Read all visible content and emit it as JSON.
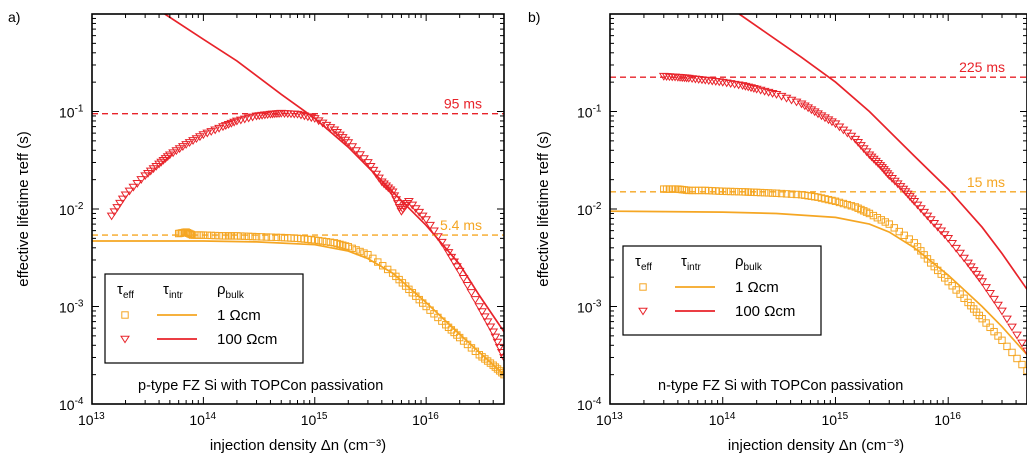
{
  "colors": {
    "orange": "#F5A623",
    "red": "#E8232A",
    "axis": "#000000"
  },
  "chart_data": [
    {
      "type": "scatter",
      "panel_label": "a)",
      "xscale": "log",
      "yscale": "log",
      "xlim": [
        10000000000000.0,
        5e+16
      ],
      "ylim": [
        0.0001,
        1
      ],
      "xlabel": "injection density Δn (cm⁻³)",
      "ylabel": "effective lifetime τeff (s)",
      "x_ticks": [
        {
          "v": 10000000000000.0,
          "b": "10",
          "e": "13"
        },
        {
          "v": 100000000000000.0,
          "b": "10",
          "e": "14"
        },
        {
          "v": 1000000000000000.0,
          "b": "10",
          "e": "15"
        },
        {
          "v": 1e+16,
          "b": "10",
          "e": "16"
        }
      ],
      "y_ticks": [
        {
          "v": 0.0001,
          "b": "10",
          "e": "-4"
        },
        {
          "v": 0.001,
          "b": "10",
          "e": "-3"
        },
        {
          "v": 0.01,
          "b": "10",
          "e": "-2"
        },
        {
          "v": 0.1,
          "b": "10",
          "e": "-1"
        }
      ],
      "annotation": "p-type FZ Si with TOPCon passivation",
      "legend": {
        "headers": [
          {
            "b": "τ",
            "s": "eff"
          },
          {
            "b": "τ",
            "s": "intr"
          },
          {
            "b": "ρ",
            "s": "bulk"
          }
        ],
        "entries": [
          {
            "label": "1 Ωcm",
            "color": "orange",
            "marker": "square"
          },
          {
            "label": "100 Ωcm",
            "color": "red",
            "marker": "triangle-down"
          }
        ]
      },
      "ref_lines": [
        {
          "y": 0.095,
          "label": "95 ms",
          "color": "red"
        },
        {
          "y": 0.0054,
          "label": "5.4 ms",
          "color": "orange"
        }
      ],
      "series": [
        {
          "marker": "square",
          "color": "orange",
          "points": [
            [
              60000000000000.0,
              0.0056
            ],
            [
              70000000000000.0,
              0.0058
            ],
            [
              80000000000000.0,
              0.0054
            ],
            [
              100000000000000.0,
              0.0054
            ],
            [
              150000000000000.0,
              0.0053
            ],
            [
              200000000000000.0,
              0.0053
            ],
            [
              300000000000000.0,
              0.0052
            ],
            [
              500000000000000.0,
              0.0051
            ],
            [
              700000000000000.0,
              0.005
            ],
            [
              1000000000000000.0,
              0.0048
            ],
            [
              1500000000000000.0,
              0.0045
            ],
            [
              2000000000000000.0,
              0.0041
            ],
            [
              3000000000000000.0,
              0.0034
            ],
            [
              5000000000000000.0,
              0.0022
            ],
            [
              7000000000000000.0,
              0.0015
            ],
            [
              1e+16,
              0.001
            ],
            [
              1.5e+16,
              0.00065
            ],
            [
              2e+16,
              0.00048
            ],
            [
              3e+16,
              0.00032
            ],
            [
              4e+16,
              0.00025
            ],
            [
              5e+16,
              0.0002
            ]
          ]
        },
        {
          "marker": "triangle-down",
          "color": "red",
          "points": [
            [
              15000000000000.0,
              0.0085
            ],
            [
              20000000000000.0,
              0.014
            ],
            [
              30000000000000.0,
              0.022
            ],
            [
              40000000000000.0,
              0.029
            ],
            [
              50000000000000.0,
              0.036
            ],
            [
              70000000000000.0,
              0.046
            ],
            [
              100000000000000.0,
              0.058
            ],
            [
              150000000000000.0,
              0.07
            ],
            [
              200000000000000.0,
              0.08
            ],
            [
              300000000000000.0,
              0.09
            ],
            [
              400000000000000.0,
              0.094
            ],
            [
              500000000000000.0,
              0.096
            ],
            [
              700000000000000.0,
              0.094
            ],
            [
              1000000000000000.0,
              0.085
            ],
            [
              1500000000000000.0,
              0.065
            ],
            [
              2000000000000000.0,
              0.048
            ],
            [
              3000000000000000.0,
              0.03
            ],
            [
              4000000000000000.0,
              0.019
            ],
            [
              5000000000000000.0,
              0.015
            ],
            [
              6000000000000000.0,
              0.0095
            ],
            [
              7000000000000000.0,
              0.012
            ],
            [
              1e+16,
              0.0078
            ],
            [
              1.5e+16,
              0.004
            ],
            [
              2e+16,
              0.0023
            ],
            [
              3e+16,
              0.001
            ],
            [
              4e+16,
              0.00055
            ],
            [
              5e+16,
              0.0003
            ]
          ]
        }
      ],
      "lines": [
        {
          "color": "orange",
          "points": [
            [
              10000000000000.0,
              0.0047
            ],
            [
              100000000000000.0,
              0.0047
            ],
            [
              300000000000000.0,
              0.0046
            ],
            [
              1000000000000000.0,
              0.0043
            ],
            [
              2000000000000000.0,
              0.0037
            ],
            [
              3000000000000000.0,
              0.0031
            ],
            [
              5000000000000000.0,
              0.0022
            ],
            [
              1e+16,
              0.0011
            ],
            [
              2e+16,
              0.00052
            ],
            [
              3e+16,
              0.00034
            ],
            [
              5e+16,
              0.0002
            ]
          ]
        },
        {
          "color": "red",
          "points": [
            [
              45000000000000.0,
              1.0
            ],
            [
              100000000000000.0,
              0.55
            ],
            [
              200000000000000.0,
              0.33
            ],
            [
              500000000000000.0,
              0.15
            ],
            [
              1000000000000000.0,
              0.085
            ],
            [
              2000000000000000.0,
              0.043
            ],
            [
              5000000000000000.0,
              0.015
            ],
            [
              1e+16,
              0.0068
            ],
            [
              2e+16,
              0.0027
            ],
            [
              3e+16,
              0.0013
            ],
            [
              5e+16,
              0.00055
            ]
          ]
        }
      ]
    },
    {
      "type": "scatter",
      "panel_label": "b)",
      "xscale": "log",
      "yscale": "log",
      "xlim": [
        10000000000000.0,
        5e+16
      ],
      "ylim": [
        0.0001,
        1
      ],
      "xlabel": "injection density Δn (cm⁻³)",
      "ylabel": "effective lifetime τeff (s)",
      "x_ticks": [
        {
          "v": 10000000000000.0,
          "b": "10",
          "e": "13"
        },
        {
          "v": 100000000000000.0,
          "b": "10",
          "e": "14"
        },
        {
          "v": 1000000000000000.0,
          "b": "10",
          "e": "15"
        },
        {
          "v": 1e+16,
          "b": "10",
          "e": "16"
        }
      ],
      "y_ticks": [
        {
          "v": 0.0001,
          "b": "10",
          "e": "-4"
        },
        {
          "v": 0.001,
          "b": "10",
          "e": "-3"
        },
        {
          "v": 0.01,
          "b": "10",
          "e": "-2"
        },
        {
          "v": 0.1,
          "b": "10",
          "e": "-1"
        }
      ],
      "annotation": "n-type FZ Si with TOPCon passivation",
      "legend": {
        "headers": [
          {
            "b": "τ",
            "s": "eff"
          },
          {
            "b": "τ",
            "s": "intr"
          },
          {
            "b": "ρ",
            "s": "bulk"
          }
        ],
        "entries": [
          {
            "label": "1 Ωcm",
            "color": "orange",
            "marker": "square"
          },
          {
            "label": "100 Ωcm",
            "color": "red",
            "marker": "triangle-down"
          }
        ]
      },
      "ref_lines": [
        {
          "y": 0.225,
          "label": "225 ms",
          "color": "red"
        },
        {
          "y": 0.015,
          "label": "15 ms",
          "color": "orange"
        }
      ],
      "series": [
        {
          "marker": "square",
          "color": "orange",
          "points": [
            [
              30000000000000.0,
              0.016
            ],
            [
              40000000000000.0,
              0.016
            ],
            [
              50000000000000.0,
              0.0155
            ],
            [
              70000000000000.0,
              0.0155
            ],
            [
              100000000000000.0,
              0.0152
            ],
            [
              150000000000000.0,
              0.015
            ],
            [
              200000000000000.0,
              0.0148
            ],
            [
              300000000000000.0,
              0.0145
            ],
            [
              500000000000000.0,
              0.014
            ],
            [
              700000000000000.0,
              0.0132
            ],
            [
              1000000000000000.0,
              0.012
            ],
            [
              1500000000000000.0,
              0.0105
            ],
            [
              2000000000000000.0,
              0.009
            ],
            [
              3000000000000000.0,
              0.007
            ],
            [
              5000000000000000.0,
              0.0045
            ],
            [
              7000000000000000.0,
              0.0028
            ],
            [
              1e+16,
              0.0018
            ],
            [
              1.5e+16,
              0.0011
            ],
            [
              2e+16,
              0.00075
            ],
            [
              3e+16,
              0.00045
            ],
            [
              5e+16,
              0.00022
            ]
          ]
        },
        {
          "marker": "triangle-down",
          "color": "red",
          "points": [
            [
              30000000000000.0,
              0.23
            ],
            [
              40000000000000.0,
              0.225
            ],
            [
              50000000000000.0,
              0.22
            ],
            [
              70000000000000.0,
              0.21
            ],
            [
              100000000000000.0,
              0.2
            ],
            [
              150000000000000.0,
              0.185
            ],
            [
              200000000000000.0,
              0.17
            ],
            [
              300000000000000.0,
              0.15
            ],
            [
              500000000000000.0,
              0.12
            ],
            [
              700000000000000.0,
              0.095
            ],
            [
              1000000000000000.0,
              0.075
            ],
            [
              1500000000000000.0,
              0.052
            ],
            [
              2000000000000000.0,
              0.036
            ],
            [
              2500000000000000.0,
              0.028
            ],
            [
              3000000000000000.0,
              0.022
            ],
            [
              4000000000000000.0,
              0.016
            ],
            [
              5000000000000000.0,
              0.012
            ],
            [
              7000000000000000.0,
              0.0078
            ],
            [
              1e+16,
              0.005
            ],
            [
              1.5e+16,
              0.0028
            ],
            [
              2e+16,
              0.0018
            ],
            [
              3e+16,
              0.0009
            ],
            [
              5e+16,
              0.00035
            ]
          ]
        }
      ],
      "lines": [
        {
          "color": "orange",
          "points": [
            [
              10000000000000.0,
              0.0095
            ],
            [
              100000000000000.0,
              0.0093
            ],
            [
              300000000000000.0,
              0.009
            ],
            [
              1000000000000000.0,
              0.0082
            ],
            [
              2000000000000000.0,
              0.007
            ],
            [
              3000000000000000.0,
              0.0058
            ],
            [
              5000000000000000.0,
              0.004
            ],
            [
              1e+16,
              0.0021
            ],
            [
              2e+16,
              0.001
            ],
            [
              3e+16,
              0.00062
            ],
            [
              5e+16,
              0.00032
            ]
          ]
        },
        {
          "color": "red",
          "points": [
            [
              140000000000000.0,
              1.0
            ],
            [
              200000000000000.0,
              0.75
            ],
            [
              500000000000000.0,
              0.36
            ],
            [
              1000000000000000.0,
              0.2
            ],
            [
              2000000000000000.0,
              0.1
            ],
            [
              5000000000000000.0,
              0.035
            ],
            [
              1e+16,
              0.016
            ],
            [
              2e+16,
              0.0065
            ],
            [
              3e+16,
              0.0035
            ],
            [
              5e+16,
              0.0015
            ]
          ]
        }
      ]
    }
  ]
}
